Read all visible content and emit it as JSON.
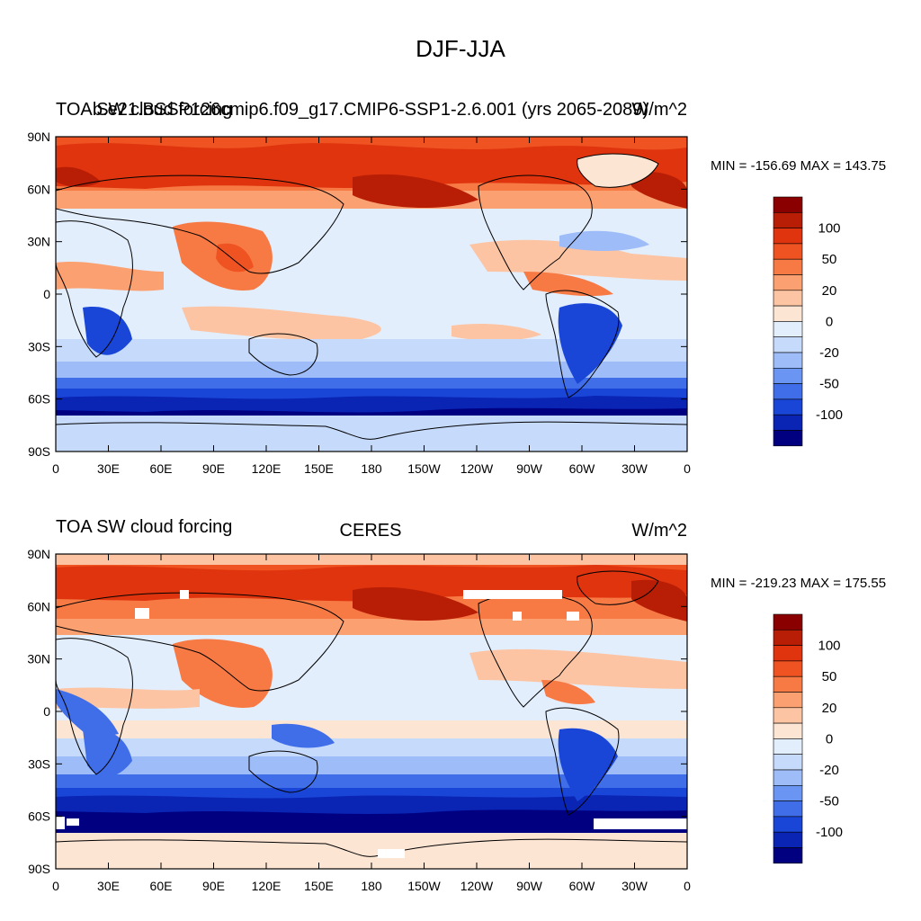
{
  "main_title": "DJF-JJA",
  "x_tick_labels": [
    "0",
    "30E",
    "60E",
    "90E",
    "120E",
    "150E",
    "180",
    "150W",
    "120W",
    "90W",
    "60W",
    "30W",
    "0"
  ],
  "y_tick_labels": [
    "90N",
    "60N",
    "30N",
    "0",
    "30S",
    "60S",
    "90S"
  ],
  "colorbar": {
    "levels": [
      -100,
      -50,
      -20,
      0,
      20,
      50,
      100
    ],
    "tick_labels": [
      "100",
      "50",
      "20",
      "0",
      "-20",
      "-50",
      "-100"
    ],
    "colors": [
      "#000080",
      "#0a24b4",
      "#1a46d8",
      "#3f6ee8",
      "#6a95f2",
      "#9dbcf8",
      "#c6dafc",
      "#e3eefd",
      "#fde5d4",
      "#fcc4a3",
      "#fba070",
      "#f77a45",
      "#ef5322",
      "#e0340e",
      "#b81d05",
      "#8a0000"
    ]
  },
  "panels": [
    {
      "id": "model",
      "left_title": "TOA SW cloud forcing",
      "center_title": "b.e21.BSSP126cmip6.f09_g17.CMIP6-SSP1-2.6.001 (yrs 2065-2089)",
      "units": "W/m^2",
      "stats": "MIN = -156.69 MAX = 143.75"
    },
    {
      "id": "obs",
      "left_title": "TOA SW cloud forcing",
      "center_title": "CERES",
      "units": "W/m^2",
      "stats": "MIN = -219.23 MAX = 175.55"
    }
  ]
}
